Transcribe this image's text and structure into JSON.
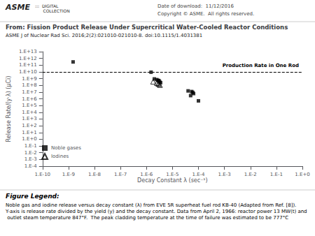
{
  "chart_data": {
    "type": "scatter",
    "title": "From: Fission Product Release Under Supercritical Water-Cooled Reactor Conditions",
    "subtitle": "ASME J of Nuclear Rad Sci. 2016;2(2):021010-021010-8. doi:10.1115/1.4031381",
    "xlabel": "Decay Constant λ (sec⁻¹)",
    "ylabel": "Release Rate/(y·λ) (μCi)",
    "log": true,
    "grid": false,
    "legend": "lower left",
    "xlim": [
      1e-10,
      1
    ],
    "ylim": [
      0.0001,
      10000000000000.0
    ],
    "xticks": [
      {
        "value": 1e-10,
        "label": "1.E-10"
      },
      {
        "value": 1e-09,
        "label": "1.E-9"
      },
      {
        "value": 1e-08,
        "label": "1.E-8"
      },
      {
        "value": 1e-07,
        "label": "1.E-7"
      },
      {
        "value": 1e-06,
        "label": "1.E-6"
      },
      {
        "value": 1e-05,
        "label": "1.E-5"
      },
      {
        "value": 0.0001,
        "label": "1.E-4"
      },
      {
        "value": 0.001,
        "label": "1.E-3"
      },
      {
        "value": 0.01,
        "label": "1.E-2"
      },
      {
        "value": 0.1,
        "label": "1.E-1"
      },
      {
        "value": 1,
        "label": "1.E+0"
      }
    ],
    "yticks": [
      {
        "value": 0.0001,
        "label": "1.E-4"
      },
      {
        "value": 0.001,
        "label": "1.E-3"
      },
      {
        "value": 0.01,
        "label": "1.E-2"
      },
      {
        "value": 0.1,
        "label": "1.E-1"
      },
      {
        "value": 1,
        "label": "1.E+0"
      },
      {
        "value": 10.0,
        "label": "1.E+1"
      },
      {
        "value": 100.0,
        "label": "1.E+2"
      },
      {
        "value": 1000.0,
        "label": "1.E+3"
      },
      {
        "value": 10000.0,
        "label": "1.E+4"
      },
      {
        "value": 100000.0,
        "label": "1.E+5"
      },
      {
        "value": 1000000.0,
        "label": "1.E+6"
      },
      {
        "value": 10000000.0,
        "label": "1.E+7"
      },
      {
        "value": 100000000.0,
        "label": "1.E+8"
      },
      {
        "value": 1000000000.0,
        "label": "1.E+9"
      },
      {
        "value": 10000000000.0,
        "label": "1.E+10"
      },
      {
        "value": 100000000000.0,
        "label": "1.E+11"
      },
      {
        "value": 1000000000000.0,
        "label": "1.E+12"
      },
      {
        "value": 10000000000000.0,
        "label": "1.E+13"
      }
    ],
    "series": [
      {
        "name": "Noble gases",
        "color": "#000000",
        "marker": "square",
        "x": [
          1.5e-09,
          1.5e-06,
          2e-06,
          2.5e-06,
          2.8e-06,
          3e-06,
          3.2e-06,
          3.5e-06,
          4e-05,
          5e-05,
          5.5e-05,
          6e-05,
          6.5e-05,
          0.0001
        ],
        "values": [
          300000000000.0,
          9000000000.0,
          900000000.0,
          700000000.0,
          550000000.0,
          500000000.0,
          350000000.0,
          250000000.0,
          15000000.0,
          3000000.0,
          12000000.0,
          9000000.0,
          6000000.0,
          500000.0
        ]
      },
      {
        "name": "Iodines",
        "color": "#000000",
        "marker": "hollow_triangle",
        "x": [
          1.8e-06,
          2.5e-06,
          2.8e-06,
          3e-06,
          3.3e-06
        ],
        "values": [
          350000000.0,
          220000000.0,
          180000000.0,
          150000000.0,
          110000000.0
        ]
      }
    ],
    "reference_lines": [
      {
        "y": 10000000000.0,
        "label": "Production Rate in One Rod",
        "line_style": "dashed"
      }
    ],
    "annotations": [
      "ASME",
      ":::  DIGITAL\n      COLLECTION",
      "Date of download:  11/12/2016",
      "Copyright © ASME.  All rights reserved.",
      "Figure Legend:",
      "Noble gas and iodine release versus decay constant (λ) from EVE 5R superheat fuel rod KB-40 (Adapted from Ref. [8]). Y-axis is release rate divided by the yield (y) and the decay constant. Data from April 2, 1966: reactor power 13 MW(t) and outlet steam temperature 847°F.  The peak cladding temperature at the time of failure was estimated to be 777°C"
    ]
  }
}
